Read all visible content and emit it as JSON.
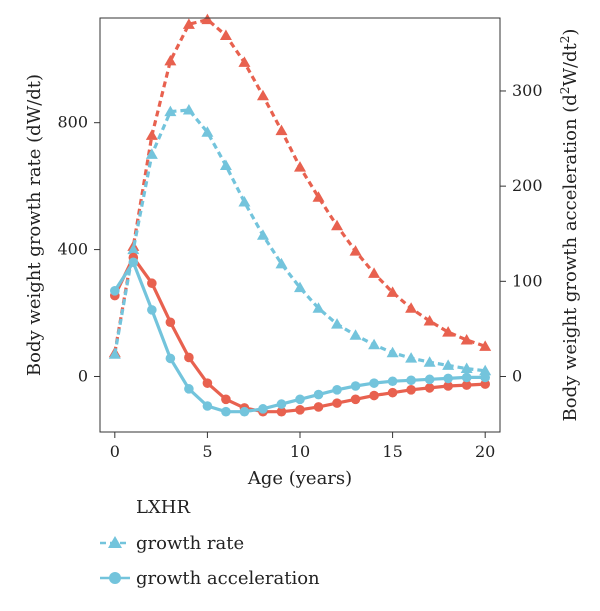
{
  "chart_data": {
    "type": "line",
    "x": [
      0,
      1,
      2,
      3,
      4,
      5,
      6,
      7,
      8,
      9,
      10,
      11,
      12,
      13,
      14,
      15,
      16,
      17,
      18,
      19,
      20
    ],
    "xlabel": "Age (years)",
    "ylabel_left": "Body weight growth rate (dW/dt)",
    "ylabel_right_parts": {
      "pre": "Body weight growth acceleration (d",
      "sup1": "2",
      "mid": "W/dt",
      "sup2": "2",
      "post": ")"
    },
    "xlim": [
      -0.8,
      20.8
    ],
    "ylim_left": [
      -175,
      1130
    ],
    "ylim_right": [
      -58.33,
      376.67
    ],
    "xticks": [
      0,
      5,
      10,
      15,
      20
    ],
    "yticks_left": [
      0,
      400,
      800
    ],
    "yticks_right": [
      0,
      100,
      200,
      300
    ],
    "series": [
      {
        "name": "growth rate",
        "group": "red",
        "axis": "left",
        "marker": "triangle",
        "style": "dashed",
        "values": [
          75,
          410,
          760,
          995,
          1110,
          1125,
          1075,
          990,
          885,
          775,
          660,
          565,
          475,
          395,
          325,
          265,
          215,
          175,
          140,
          115,
          95
        ]
      },
      {
        "name": "growth rate",
        "group": "LXHR",
        "axis": "left",
        "marker": "triangle",
        "style": "dashed",
        "values": [
          70,
          400,
          700,
          835,
          840,
          770,
          665,
          550,
          445,
          355,
          280,
          215,
          165,
          130,
          100,
          75,
          58,
          45,
          35,
          25,
          18
        ]
      },
      {
        "name": "growth acceleration",
        "group": "red",
        "axis": "right",
        "marker": "circle",
        "style": "solid",
        "values": [
          85,
          125,
          98,
          57,
          20,
          -7,
          -24,
          -33,
          -37,
          -37,
          -35,
          -32,
          -28,
          -24,
          -20,
          -17,
          -14,
          -12,
          -10,
          -9,
          -8
        ]
      },
      {
        "name": "growth acceleration",
        "group": "LXHR",
        "axis": "right",
        "marker": "circle",
        "style": "solid",
        "values": [
          90,
          120,
          70,
          19,
          -13,
          -31,
          -37,
          -37,
          -34,
          -29,
          -24,
          -19,
          -14,
          -10,
          -7,
          -5,
          -4,
          -3,
          -2,
          -1,
          -1
        ]
      }
    ],
    "colors": {
      "red": "#e8614f",
      "LXHR": "#73c4dc"
    },
    "legend": {
      "title": "LXHR",
      "items": [
        {
          "label": "growth rate",
          "marker": "triangle",
          "color": "#73c4dc"
        },
        {
          "label": "growth acceleration",
          "marker": "circle",
          "color": "#73c4dc"
        }
      ],
      "position": "bottom-left"
    },
    "grid": false
  }
}
